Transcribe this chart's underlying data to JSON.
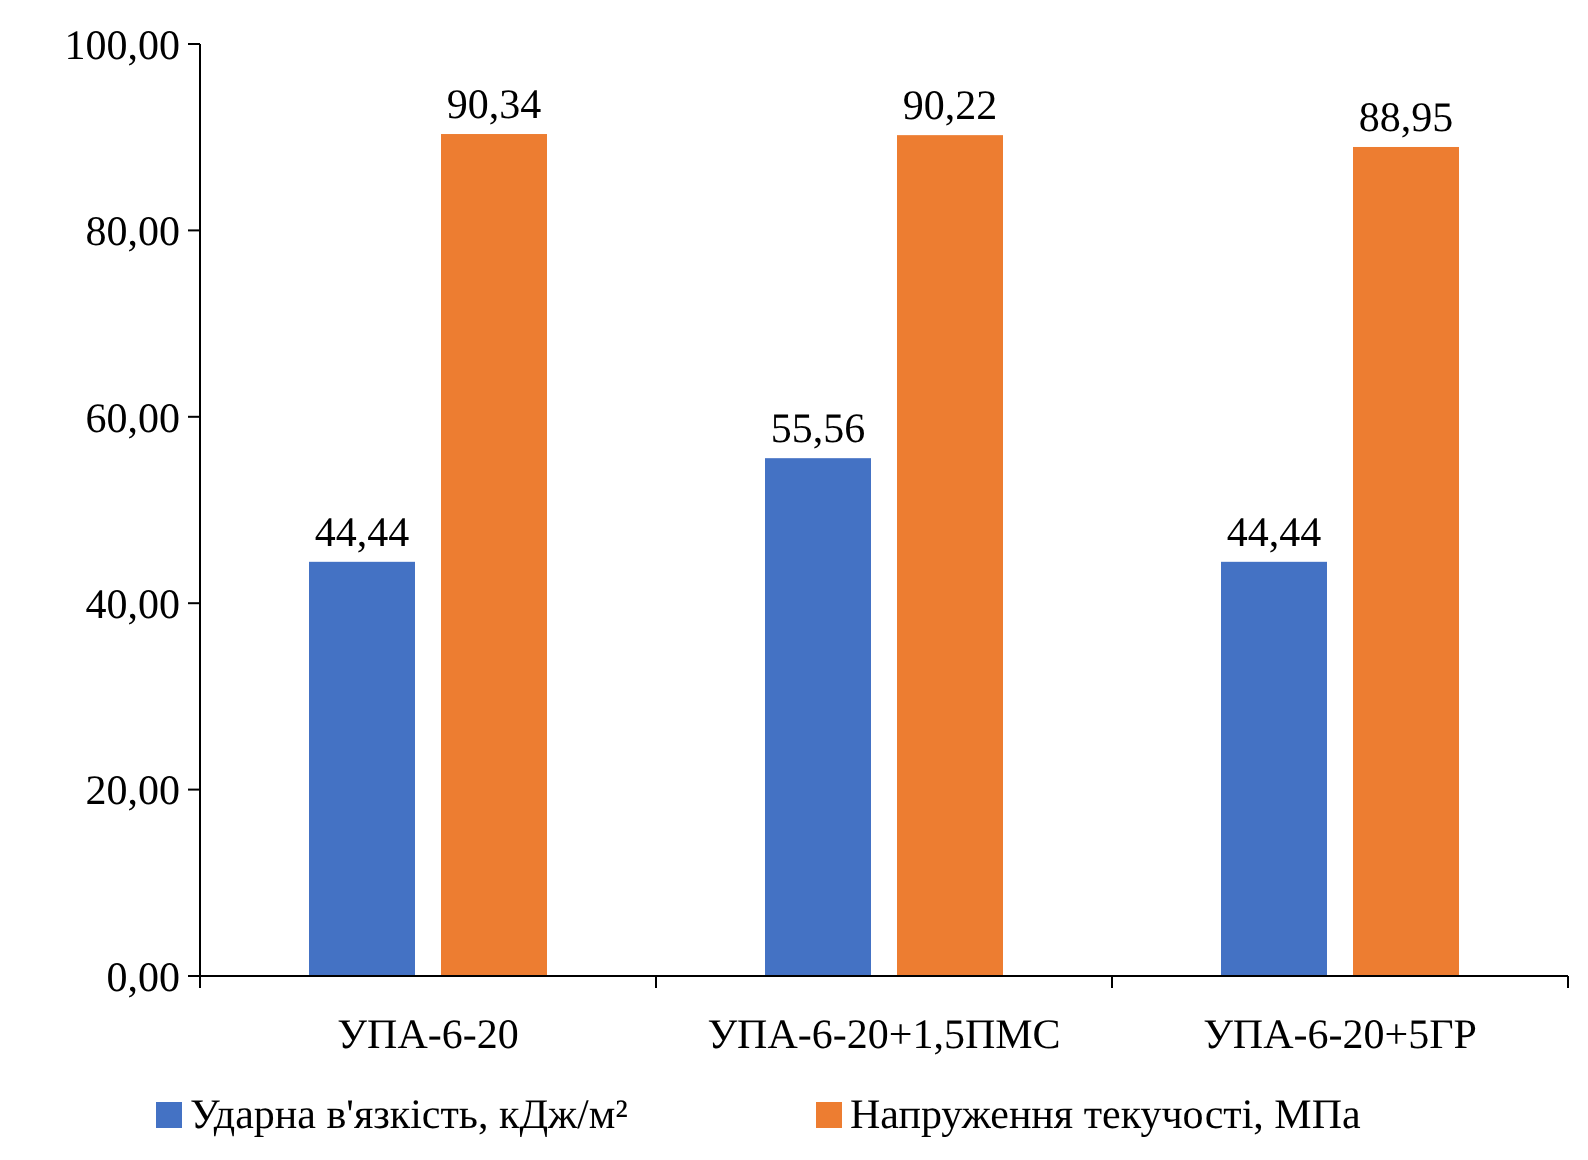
{
  "chart_data": {
    "type": "bar",
    "categories": [
      "УПА-6-20",
      "УПА-6-20+1,5ПМС",
      "УПА-6-20+5ГР"
    ],
    "series": [
      {
        "name": "Ударна в'язкість, кДж/м²",
        "color": "#4472c4",
        "values": [
          44.44,
          55.56,
          44.44
        ],
        "value_labels": [
          "44,44",
          "55,56",
          "44,44"
        ]
      },
      {
        "name": "Напруження текучості, МПа",
        "color": "#ed7d31",
        "values": [
          90.34,
          90.22,
          88.95
        ],
        "value_labels": [
          "90,34",
          "90,22",
          "88,95"
        ]
      }
    ],
    "ylim": [
      0,
      100
    ],
    "yticks": [
      {
        "value": 0,
        "label": "0,00"
      },
      {
        "value": 20,
        "label": "20,00"
      },
      {
        "value": 40,
        "label": "40,00"
      },
      {
        "value": 60,
        "label": "60,00"
      },
      {
        "value": 80,
        "label": "80,00"
      },
      {
        "value": 100,
        "label": "100,00"
      }
    ],
    "legend": "bottom"
  }
}
